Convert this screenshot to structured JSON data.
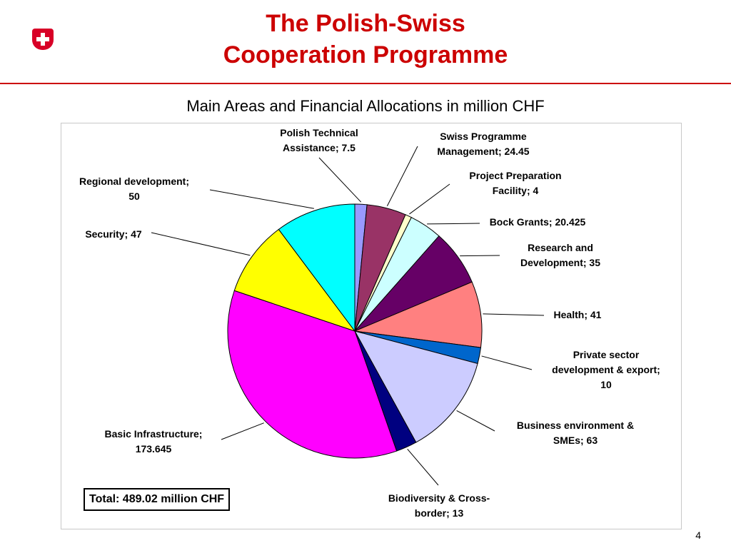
{
  "header": {
    "title_line1": "The Polish-Swiss",
    "title_line2": "Cooperation Programme",
    "subtitle": "Main Areas and Financial Allocations in million CHF"
  },
  "brand": {
    "accent": "#cc0000",
    "logo_icon": "swiss-cross-icon"
  },
  "total_label": "Total: 489.02 million CHF",
  "page_number": "4",
  "chart_data": {
    "type": "pie",
    "title": "Main Areas and Financial Allocations in million CHF",
    "total": 489.02,
    "slices": [
      {
        "label_l1": "Polish Technical",
        "label_l2": "Assistance; 7.5",
        "value": 7.5,
        "color": "#9999ff"
      },
      {
        "label_l1": "Swiss Programme",
        "label_l2": "Management; 24.45",
        "value": 24.45,
        "color": "#993366"
      },
      {
        "label_l1": "Project Preparation",
        "label_l2": "Facility; 4",
        "value": 4,
        "color": "#ffffcc"
      },
      {
        "label_l1": "Bock Grants; 20.425",
        "label_l2": "",
        "value": 20.425,
        "color": "#ccffff"
      },
      {
        "label_l1": "Research and",
        "label_l2": "Development; 35",
        "value": 35,
        "color": "#660066"
      },
      {
        "label_l1": "Health; 41",
        "label_l2": "",
        "value": 41,
        "color": "#ff8080"
      },
      {
        "label_l1": "Private sector",
        "label_l2": "development & export;",
        "label_l3": "10",
        "value": 10,
        "color": "#0066cc"
      },
      {
        "label_l1": "Business environment &",
        "label_l2": "SMEs; 63",
        "value": 63,
        "color": "#ccccff"
      },
      {
        "label_l1": "Biodiversity & Cross-",
        "label_l2": "border; 13",
        "value": 13,
        "color": "#000080"
      },
      {
        "label_l1": "Basic Infrastructure;",
        "label_l2": "173.645",
        "value": 173.645,
        "color": "#ff00ff"
      },
      {
        "label_l1": "Security; 47",
        "label_l2": "",
        "value": 47,
        "color": "#ffff00"
      },
      {
        "label_l1": "Regional development;",
        "label_l2": "50",
        "value": 50,
        "color": "#00ffff"
      }
    ]
  }
}
